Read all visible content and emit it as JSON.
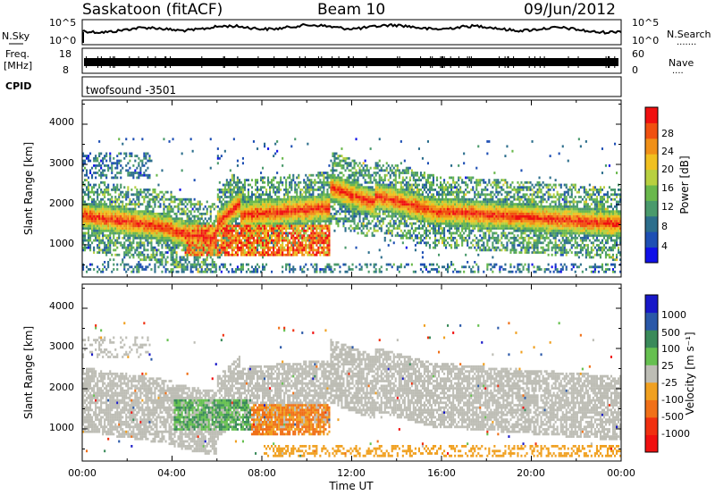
{
  "header": {
    "station": "Saskatoon (fitACF)",
    "beam": "Beam 10",
    "date": "09/Jun/2012"
  },
  "noise_panel": {
    "left_label": "N.Sky",
    "right_label": "N.Search",
    "right_marker": ".......",
    "ticks": [
      "10^5",
      "10^0"
    ]
  },
  "freq_panel": {
    "left_label_top": "Freq.",
    "left_label_bottom": "[MHz]",
    "left_ticks": [
      "18",
      "8"
    ],
    "right_label": "Nave",
    "right_marker": "....",
    "right_ticks": [
      "60",
      "0"
    ]
  },
  "cpid_panel": {
    "label": "CPID",
    "value": "twofsound -3501"
  },
  "chart_data": [
    {
      "type": "heatmap",
      "quantity": "power",
      "xlabel": "",
      "ylabel": "Slant Range [km]",
      "ylim": [
        200,
        4600
      ],
      "xlim": [
        0,
        24
      ],
      "yticks": [
        "4000",
        "3000",
        "2000",
        "1000"
      ],
      "colorbar": {
        "label": "Power [dB]",
        "ticks": [
          "28",
          "24",
          "20",
          "16",
          "12",
          "8",
          "4"
        ],
        "colors": [
          "#1010e8",
          "#1e4fb4",
          "#2c6e8c",
          "#4a9a6c",
          "#6ab84c",
          "#b8d040",
          "#f0c020",
          "#f09018",
          "#f05010",
          "#f01010"
        ]
      }
    },
    {
      "type": "heatmap",
      "quantity": "velocity",
      "xlabel": "Time UT",
      "ylabel": "Slant Range [km]",
      "ylim": [
        200,
        4600
      ],
      "xlim": [
        0,
        24
      ],
      "yticks": [
        "4000",
        "3000",
        "2000",
        "1000"
      ],
      "xticks": [
        "00:00",
        "04:00",
        "08:00",
        "12:00",
        "16:00",
        "20:00",
        "00:00"
      ],
      "colorbar": {
        "label": "Velocity [m s⁻¹]",
        "ticks": [
          "1000",
          "500",
          "100",
          "25",
          "-25",
          "-100",
          "-500",
          "-1000"
        ],
        "colors": [
          "#1818c8",
          "#2a58a8",
          "#3a8a5a",
          "#66c050",
          "#bdbdb5",
          "#f0a020",
          "#f07018",
          "#f03010",
          "#f01010"
        ]
      }
    }
  ]
}
